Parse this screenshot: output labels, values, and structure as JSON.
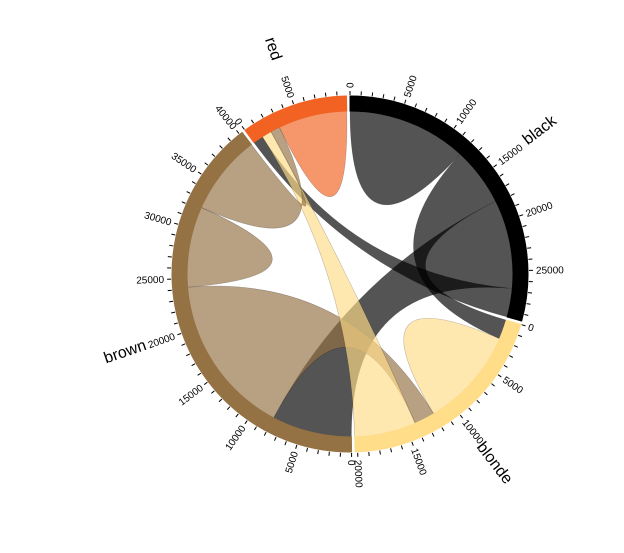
{
  "chart_data": {
    "type": "chord",
    "groups": [
      {
        "name": "black",
        "color": "#000000"
      },
      {
        "name": "blonde",
        "color": "#FFDD89"
      },
      {
        "name": "brown",
        "color": "#957244"
      },
      {
        "name": "red",
        "color": "#F26223"
      }
    ],
    "matrix": [
      [
        11975,
        5871,
        8916,
        2868
      ],
      [
        1951,
        10048,
        2060,
        6171
      ],
      [
        8010,
        16145,
        8090,
        8045
      ],
      [
        1013,
        990,
        940,
        6907
      ]
    ],
    "tick_step": 1000,
    "tick_label_step": 5000,
    "chord_opacity": 0.67
  }
}
